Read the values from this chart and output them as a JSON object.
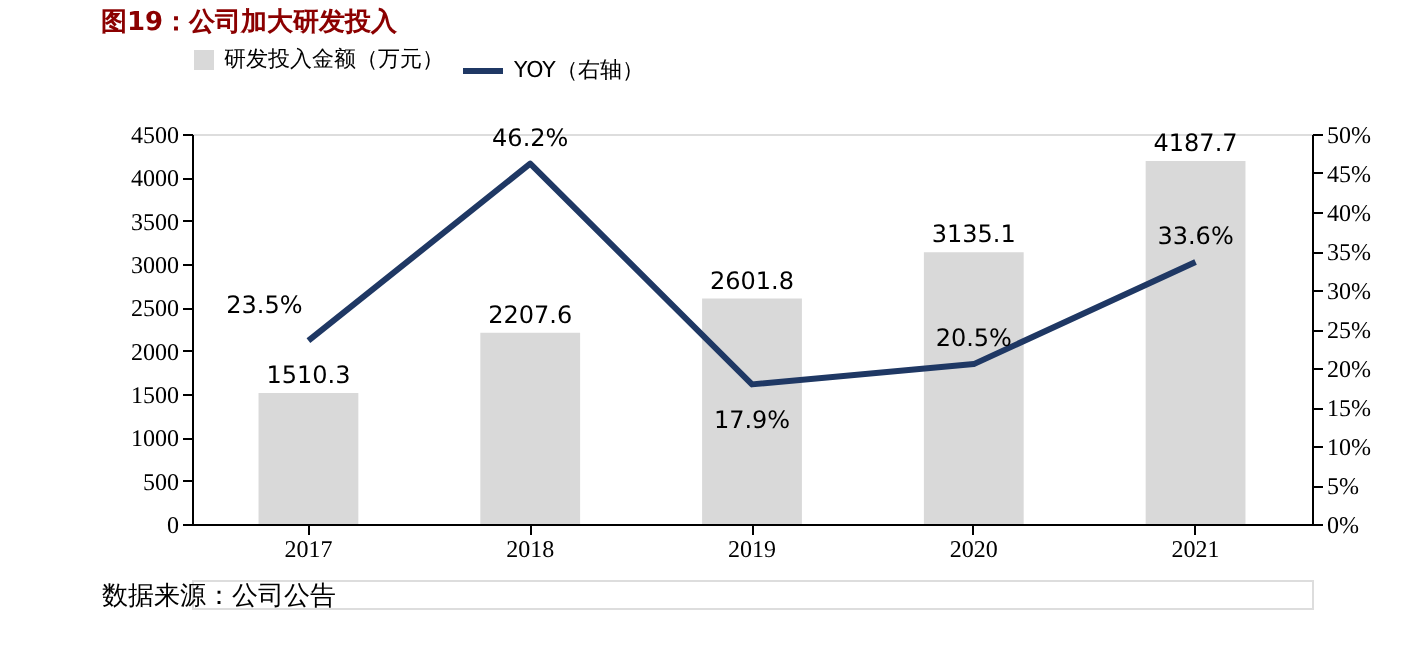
{
  "chart_data": {
    "type": "bar",
    "title": "图19：公司加大研发投入",
    "categories": [
      "2017",
      "2018",
      "2019",
      "2020",
      "2021"
    ],
    "series": [
      {
        "name": "研发投入金额（万元）",
        "color": "#d9d9d9",
        "values": [
          1510.3,
          2207.6,
          2601.8,
          3135.1,
          4187.7
        ]
      },
      {
        "name": "YOY（右轴）",
        "type": "line",
        "axis": "y2",
        "color": "#1f3864",
        "values": [
          23.5,
          46.2,
          17.9,
          20.5,
          33.6
        ],
        "value_labels": [
          "23.5%",
          "46.2%",
          "17.9%",
          "20.5%",
          "33.6%"
        ]
      }
    ],
    "ylim": [
      0,
      4500
    ],
    "yticks": [
      0,
      500,
      1000,
      1500,
      2000,
      2500,
      3000,
      3500,
      4000,
      4500
    ],
    "y2lim": [
      0,
      50
    ],
    "y2ticks": [
      {
        "value": 0,
        "label": "0%"
      },
      {
        "value": 5,
        "label": "5%"
      },
      {
        "value": 10,
        "label": "10%"
      },
      {
        "value": 15,
        "label": "15%"
      },
      {
        "value": 20,
        "label": "20%"
      },
      {
        "value": 25,
        "label": "25%"
      },
      {
        "value": 30,
        "label": "30%"
      },
      {
        "value": 35,
        "label": "35%"
      },
      {
        "value": 40,
        "label": "40%"
      },
      {
        "value": 45,
        "label": "45%"
      },
      {
        "value": 50,
        "label": "50%"
      }
    ],
    "data_labels": true,
    "legend": "top",
    "grid": false,
    "marker": "none",
    "line_style": "solid",
    "annotations": [
      "数据来源：公司公告"
    ]
  }
}
